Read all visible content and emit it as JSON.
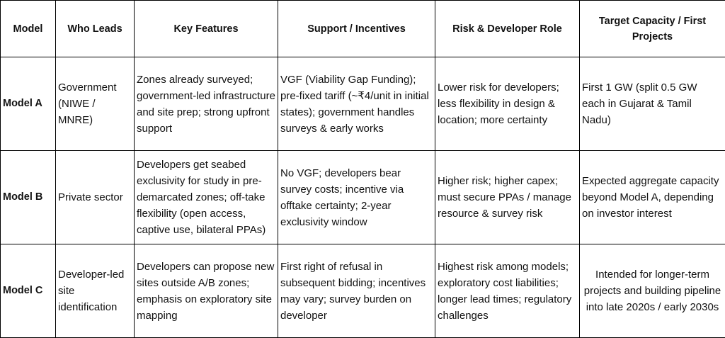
{
  "table": {
    "header": [
      "Model",
      "Who Leads",
      "Key Features",
      "Support / Incentives",
      "Risk & Developer Role",
      "Target Capacity / First Projects"
    ],
    "rows": [
      [
        "Model A",
        "Government (NIWE / MNRE)",
        "Zones already surveyed; government-led infrastructure and site prep; strong upfront support",
        "VGF (Viability Gap Funding); pre-fixed tariff (~₹4/unit in initial states); government handles surveys & early works",
        "Lower risk for developers; less flexibility in design & location; more certainty",
        "First 1 GW (split 0.5 GW each in Gujarat & Tamil Nadu)"
      ],
      [
        "Model B",
        "Private sector",
        "Developers get seabed exclusivity for study in pre-demarcated zones; off-take flexibility (open access, captive use, bilateral PPAs)",
        "No VGF; developers bear survey costs; incentive via offtake certainty; 2-year exclusivity window",
        "Higher risk; higher capex; must secure PPAs / manage resource & survey risk",
        "Expected aggregate capacity beyond Model A, depending on investor interest"
      ],
      [
        "Model C",
        "Developer-led site identification",
        "Developers can propose new sites outside A/B zones; emphasis on exploratory site mapping",
        "First right of refusal in subsequent bidding; incentives may vary; survey burden on developer",
        "Highest risk among models; exploratory cost liabilities; longer lead times; regulatory challenges",
        "Intended for longer-term projects and building pipeline into late 2020s / early 2030s"
      ]
    ]
  }
}
